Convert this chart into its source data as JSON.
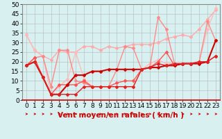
{
  "title": "",
  "xlabel": "Vent moyen/en rafales ( km/h )",
  "x": [
    0,
    1,
    2,
    3,
    4,
    5,
    6,
    7,
    8,
    9,
    10,
    11,
    12,
    13,
    14,
    15,
    16,
    17,
    18,
    19,
    20,
    21,
    22,
    23
  ],
  "series": [
    {
      "color": "#ffaaaa",
      "lw": 1.0,
      "values": [
        34,
        26,
        23,
        21,
        26,
        25,
        25,
        28,
        28,
        26,
        28,
        27,
        28,
        29,
        29,
        29,
        30,
        32,
        33,
        34,
        33,
        37,
        42,
        47
      ]
    },
    {
      "color": "#ffbbbb",
      "lw": 1.0,
      "values": [
        34,
        26,
        23,
        3,
        7,
        11,
        25,
        11,
        7,
        7,
        7,
        7,
        7,
        7,
        16,
        19,
        21,
        19,
        19,
        19,
        19,
        20,
        37,
        48
      ]
    },
    {
      "color": "#ff8888",
      "lw": 1.0,
      "values": [
        18,
        22,
        23,
        7,
        26,
        26,
        10,
        9,
        7,
        7,
        7,
        16,
        28,
        27,
        16,
        17,
        43,
        37,
        19,
        19,
        19,
        20,
        41,
        31
      ]
    },
    {
      "color": "#ff5555",
      "lw": 1.0,
      "values": [
        18,
        22,
        12,
        3,
        8,
        8,
        8,
        10,
        7,
        7,
        7,
        9,
        10,
        10,
        16,
        17,
        20,
        25,
        18,
        19,
        19,
        20,
        20,
        23
      ]
    },
    {
      "color": "#cc0000",
      "lw": 1.5,
      "values": [
        18,
        20,
        12,
        3,
        3,
        8,
        13,
        13,
        15,
        15,
        16,
        16,
        16,
        16,
        16,
        17,
        17,
        18,
        18,
        19,
        19,
        19,
        20,
        31
      ]
    },
    {
      "color": "#dd2222",
      "lw": 1.0,
      "values": [
        18,
        20,
        12,
        3,
        3,
        3,
        3,
        7,
        7,
        7,
        7,
        7,
        7,
        7,
        16,
        17,
        19,
        18,
        19,
        19,
        19,
        20,
        20,
        23
      ]
    }
  ],
  "ylim": [
    0,
    50
  ],
  "yticks": [
    0,
    5,
    10,
    15,
    20,
    25,
    30,
    35,
    40,
    45,
    50
  ],
  "xlim": [
    -0.5,
    23.5
  ],
  "xticks": [
    0,
    1,
    2,
    3,
    4,
    5,
    6,
    7,
    8,
    9,
    10,
    11,
    12,
    13,
    14,
    15,
    16,
    17,
    18,
    19,
    20,
    21,
    22,
    23
  ],
  "bg_color": "#d8f0f0",
  "grid_color": "#aaaaaa",
  "xlabel_color": "#cc0000",
  "xlabel_fontsize": 7.5,
  "axis_fontsize": 6.5,
  "marker": "D",
  "markersize": 2.0
}
